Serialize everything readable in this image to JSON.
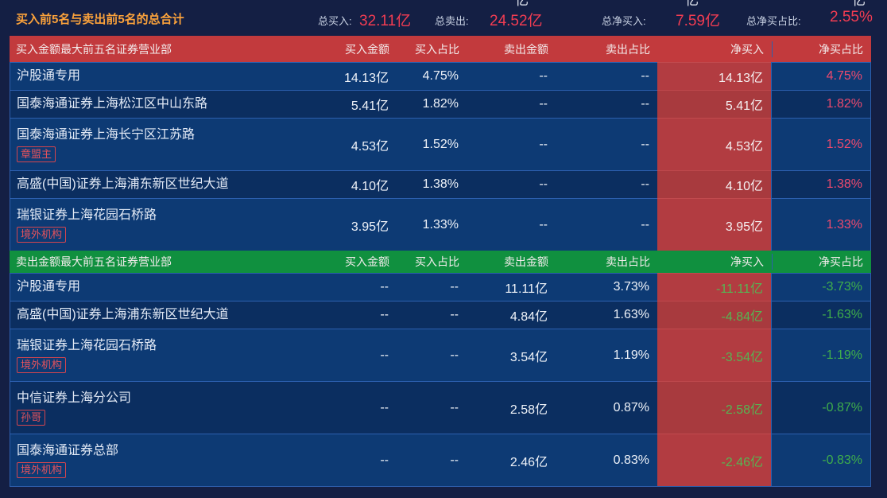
{
  "colors": {
    "page_bg": "#141f44",
    "row_odd": "#0d3a74",
    "row_even": "#0b2e60",
    "buy_header_bg": "#c23a3d",
    "sell_header_bg": "#10903f",
    "net_column_bg": "#b23c41",
    "accent_red": "#f23c52",
    "accent_pink": "#ee4a6e",
    "accent_green": "#3fae4b",
    "accent_orange": "#fba23b"
  },
  "summary": {
    "title": "买入前5名与卖出前5名的总合计",
    "items": [
      {
        "label": "总买入:",
        "value": "32.11亿"
      },
      {
        "label": "总卖出:",
        "value": "24.52亿"
      },
      {
        "label": "总净买入:",
        "value": "7.59亿"
      },
      {
        "label": "总净买占比:",
        "value": "2.55%"
      }
    ],
    "clipped_row_fragments": [
      "亿",
      "亿",
      "亿"
    ]
  },
  "buy_section": {
    "header": {
      "title": "买入金额最大前五名证券营业部",
      "columns": [
        "买入金额",
        "买入占比",
        "卖出金额",
        "卖出占比",
        "净买入",
        "净买占比"
      ]
    },
    "rows": [
      {
        "name": "沪股通专用",
        "tag": "",
        "buy_amount": "14.13亿",
        "buy_pct": "4.75%",
        "sell_amount": "--",
        "sell_pct": "--",
        "net_buy": "14.13亿",
        "net_pct": "4.75%"
      },
      {
        "name": "国泰海通证券上海松江区中山东路",
        "tag": "",
        "buy_amount": "5.41亿",
        "buy_pct": "1.82%",
        "sell_amount": "--",
        "sell_pct": "--",
        "net_buy": "5.41亿",
        "net_pct": "1.82%"
      },
      {
        "name": "国泰海通证券上海长宁区江苏路",
        "tag": "章盟主",
        "buy_amount": "4.53亿",
        "buy_pct": "1.52%",
        "sell_amount": "--",
        "sell_pct": "--",
        "net_buy": "4.53亿",
        "net_pct": "1.52%"
      },
      {
        "name": "高盛(中国)证券上海浦东新区世纪大道",
        "tag": "",
        "buy_amount": "4.10亿",
        "buy_pct": "1.38%",
        "sell_amount": "--",
        "sell_pct": "--",
        "net_buy": "4.10亿",
        "net_pct": "1.38%"
      },
      {
        "name": "瑞银证券上海花园石桥路",
        "tag": "境外机构",
        "buy_amount": "3.95亿",
        "buy_pct": "1.33%",
        "sell_amount": "--",
        "sell_pct": "--",
        "net_buy": "3.95亿",
        "net_pct": "1.33%"
      }
    ]
  },
  "sell_section": {
    "header": {
      "title": "卖出金额最大前五名证券营业部",
      "columns": [
        "买入金额",
        "买入占比",
        "卖出金额",
        "卖出占比",
        "净买入",
        "净买占比"
      ]
    },
    "rows": [
      {
        "name": "沪股通专用",
        "tag": "",
        "buy_amount": "--",
        "buy_pct": "--",
        "sell_amount": "11.11亿",
        "sell_pct": "3.73%",
        "net_buy": "-11.11亿",
        "net_pct": "-3.73%"
      },
      {
        "name": "高盛(中国)证券上海浦东新区世纪大道",
        "tag": "",
        "buy_amount": "--",
        "buy_pct": "--",
        "sell_amount": "4.84亿",
        "sell_pct": "1.63%",
        "net_buy": "-4.84亿",
        "net_pct": "-1.63%"
      },
      {
        "name": "瑞银证券上海花园石桥路",
        "tag": "境外机构",
        "buy_amount": "--",
        "buy_pct": "--",
        "sell_amount": "3.54亿",
        "sell_pct": "1.19%",
        "net_buy": "-3.54亿",
        "net_pct": "-1.19%"
      },
      {
        "name": "中信证券上海分公司",
        "tag": "孙哥",
        "buy_amount": "--",
        "buy_pct": "--",
        "sell_amount": "2.58亿",
        "sell_pct": "0.87%",
        "net_buy": "-2.58亿",
        "net_pct": "-0.87%"
      },
      {
        "name": "国泰海通证券总部",
        "tag": "境外机构",
        "buy_amount": "--",
        "buy_pct": "--",
        "sell_amount": "2.46亿",
        "sell_pct": "0.83%",
        "net_buy": "-2.46亿",
        "net_pct": "-0.83%"
      }
    ]
  }
}
